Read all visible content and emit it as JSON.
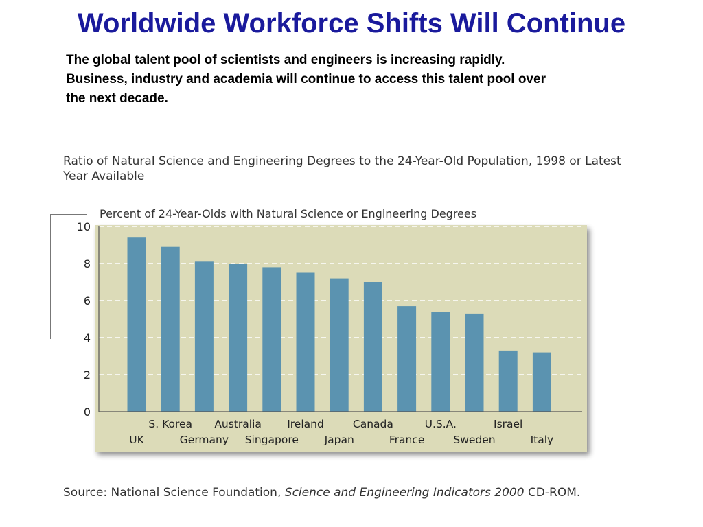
{
  "slide": {
    "title": "Worldwide Workforce Shifts Will Continue",
    "intro_lines": [
      "The global talent pool of scientists and engineers is increasing rapidly.",
      "Business, industry and academia will continue to access this talent pool over",
      "the next decade."
    ]
  },
  "figure": {
    "title_lines": [
      "Ratio of Natural Science and Engineering Degrees to the 24-Year-Old Population, 1998 or Latest",
      "Year Available"
    ]
  },
  "source": {
    "prefix": "Source:  National Science Foundation,",
    "italic": "Science and Engineering Indicators 2000",
    "suffix": "CD-ROM."
  },
  "chart_data": {
    "type": "bar",
    "title": "Percent of 24-Year-Olds with Natural Science or Engineering Degrees",
    "categories": [
      "UK",
      "S. Korea",
      "Germany",
      "Australia",
      "Singapore",
      "Ireland",
      "Japan",
      "Canada",
      "France",
      "U.S.A.",
      "Sweden",
      "Israel",
      "Italy"
    ],
    "values": [
      9.4,
      8.9,
      8.1,
      8.0,
      7.8,
      7.5,
      7.2,
      7.0,
      5.7,
      5.4,
      5.3,
      3.3,
      3.2
    ],
    "ylim": [
      0,
      10
    ],
    "yticks": [
      0,
      2,
      4,
      6,
      8,
      10
    ],
    "xlabel": "",
    "ylabel": "",
    "grid": true,
    "colors": {
      "bar": "#5b93b0",
      "plot_background": "#dcdbb8",
      "grid": "#ffffff",
      "axis_text": "#222222"
    }
  }
}
